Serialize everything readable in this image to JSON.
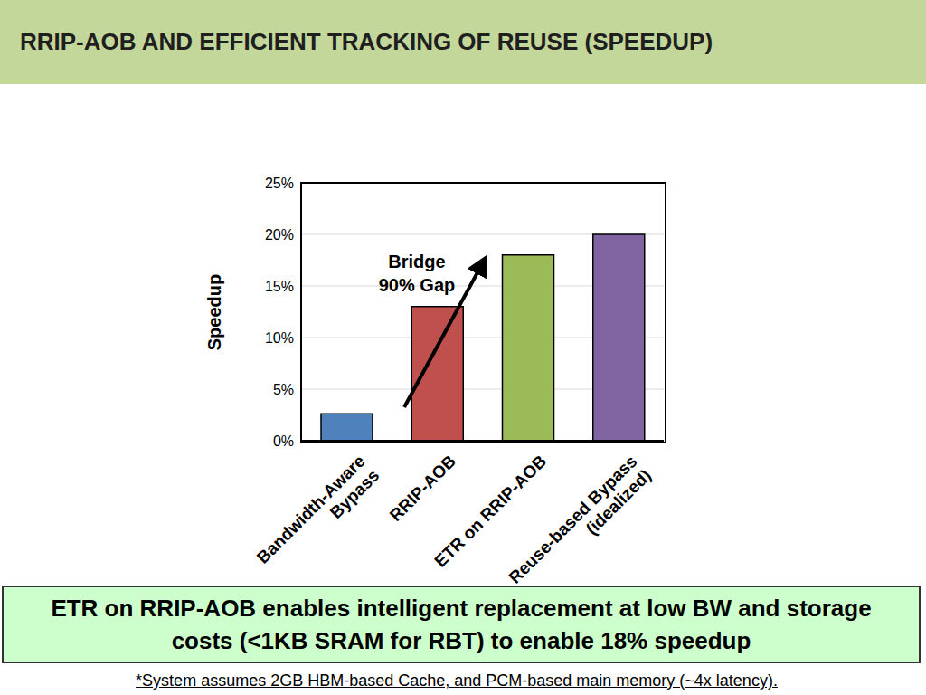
{
  "title": "RRIP-AOB AND EFFICIENT TRACKING OF REUSE (SPEEDUP)",
  "caption": "ETR on RRIP-AOB enables intelligent replacement at low BW and storage costs (<1KB SRAM for RBT) to enable 18% speedup",
  "footnote": "*System assumes 2GB HBM-based Cache, and PCM-based main memory (~4x latency).",
  "chart_data": {
    "type": "bar",
    "y_label": "Speedup",
    "annotation": "Bridge 90% Gap",
    "categories": [
      "Bandwidth-Aware Bypass",
      "RRIP-AOB",
      "ETR on RRIP-AOB",
      "Reuse-based Bypass (idealized)"
    ],
    "values": [
      2.6,
      13,
      18,
      20
    ],
    "colors": [
      "#4f81bd",
      "#c0504d",
      "#9bbb59",
      "#8064a2"
    ],
    "ylim": [
      0,
      25
    ],
    "yticks": [
      {
        "value": 0,
        "label": "0%"
      },
      {
        "value": 5,
        "label": "5%"
      },
      {
        "value": 10,
        "label": "10%"
      },
      {
        "value": 15,
        "label": "15%"
      },
      {
        "value": 20,
        "label": "20%"
      },
      {
        "value": 25,
        "label": "25%"
      }
    ],
    "grid": true
  }
}
